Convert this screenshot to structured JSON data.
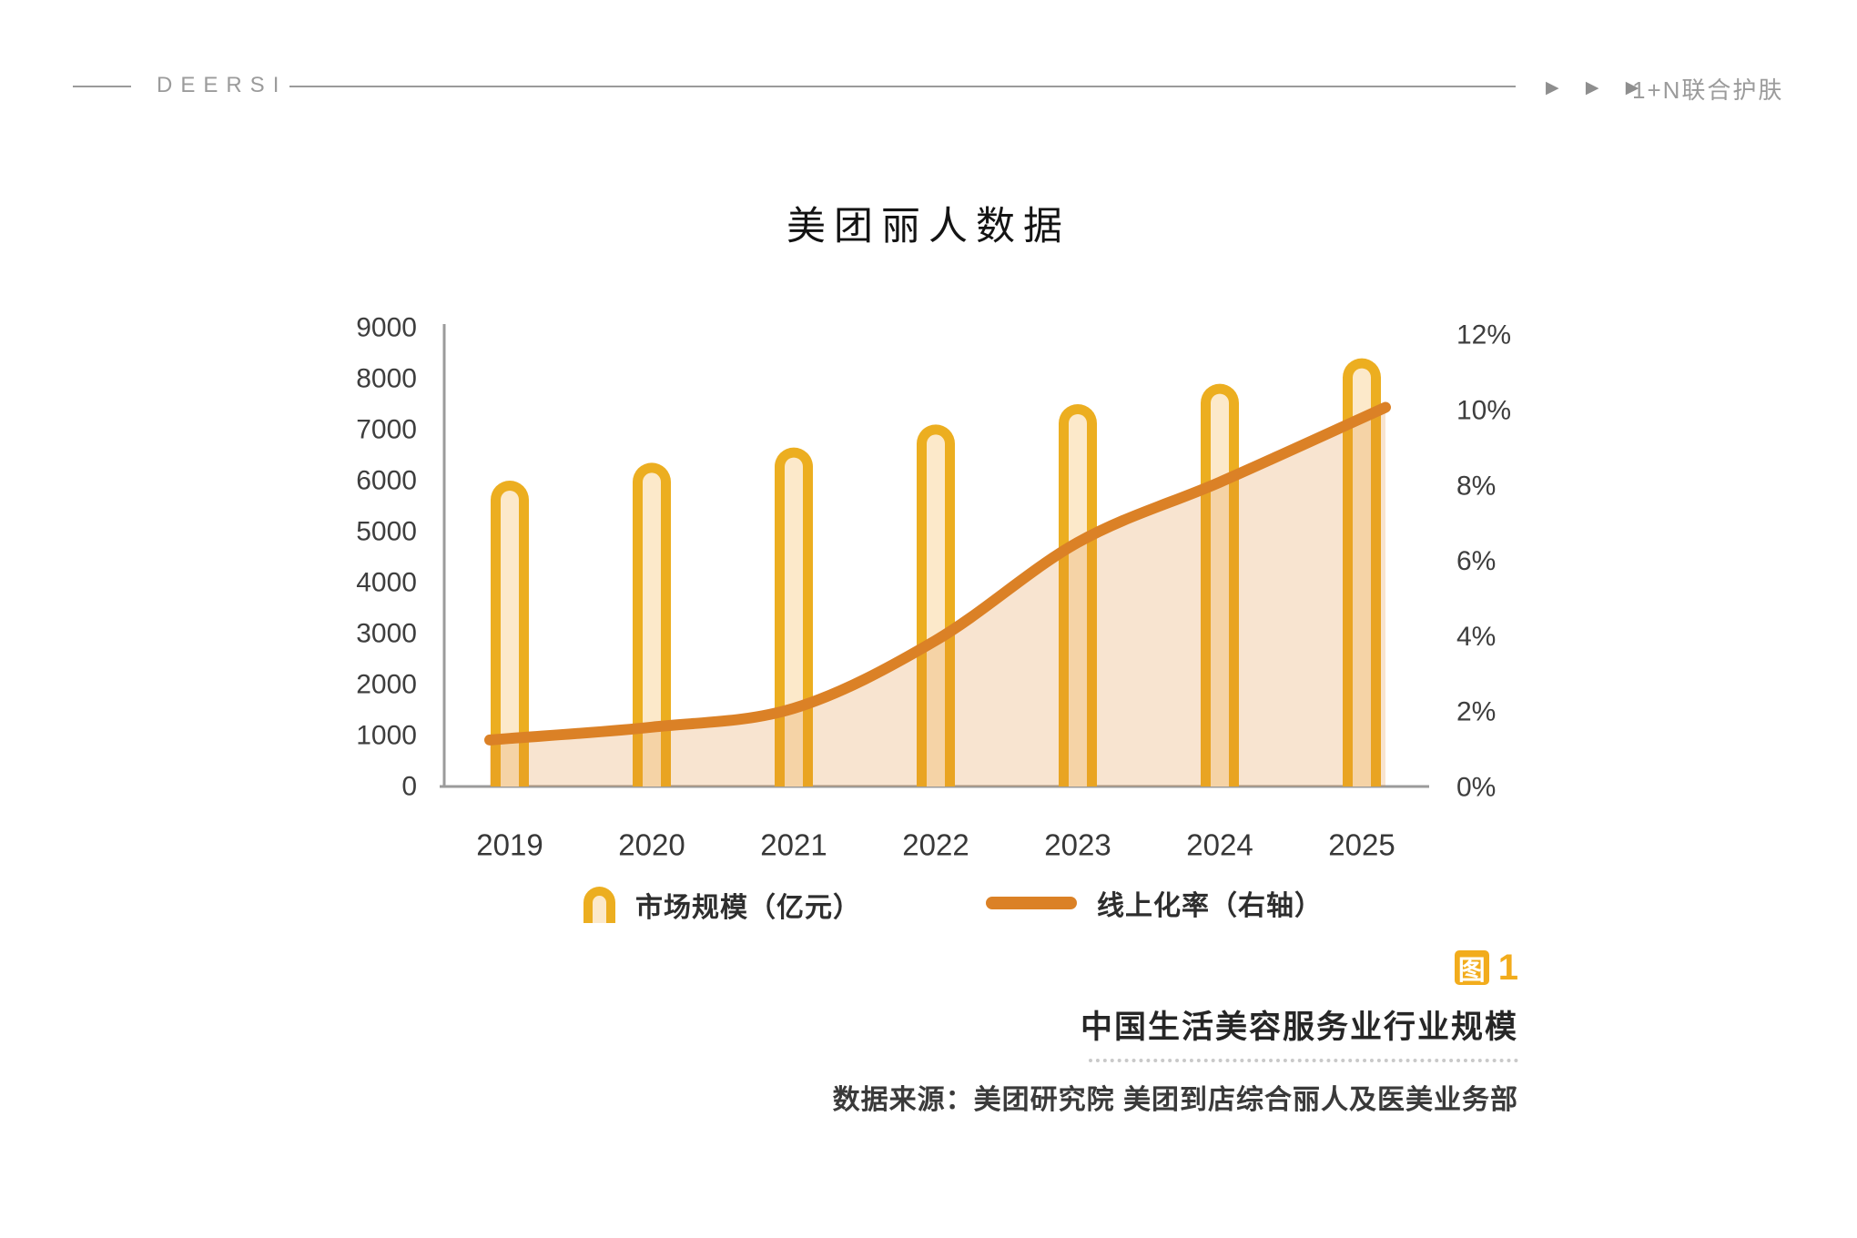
{
  "header": {
    "brand": "DEERSI",
    "arrows": "▶ ▶ ▶",
    "nav_text": "1+N联合护肤"
  },
  "title": "美团丽人数据",
  "chart_data": {
    "type": "combo-bar-line",
    "title": "美团丽人数据",
    "categories": [
      "2019",
      "2020",
      "2021",
      "2022",
      "2023",
      "2024",
      "2025"
    ],
    "series": [
      {
        "name": "市场规模（亿元）",
        "type": "bar",
        "axis": "left",
        "values": [
          6000,
          6350,
          6650,
          7100,
          7500,
          7900,
          8400
        ]
      },
      {
        "name": "线上化率（右轴）",
        "type": "line",
        "axis": "right",
        "values": [
          1.3,
          1.6,
          2.1,
          3.9,
          6.5,
          8.1,
          9.8
        ]
      }
    ],
    "left_axis": {
      "min": 0,
      "max": 9000,
      "ticks": [
        {
          "value": 0,
          "label": "0"
        },
        {
          "value": 1000,
          "label": "1000"
        },
        {
          "value": 2000,
          "label": "2000"
        },
        {
          "value": 3000,
          "label": "3000"
        },
        {
          "value": 4000,
          "label": "4000"
        },
        {
          "value": 5000,
          "label": "5000"
        },
        {
          "value": 6000,
          "label": "6000"
        },
        {
          "value": 7000,
          "label": "7000"
        },
        {
          "value": 8000,
          "label": "8000"
        },
        {
          "value": 9000,
          "label": "9000"
        }
      ]
    },
    "right_axis": {
      "min": 0,
      "max": 12,
      "ticks": [
        {
          "value": 0,
          "label": "0%"
        },
        {
          "value": 2,
          "label": "2%"
        },
        {
          "value": 4,
          "label": "4%"
        },
        {
          "value": 6,
          "label": "6%"
        },
        {
          "value": 8,
          "label": "8%"
        },
        {
          "value": 10,
          "label": "10%"
        },
        {
          "value": 12,
          "label": "12%"
        }
      ]
    },
    "grid": false,
    "legend_position": "bottom"
  },
  "legend": {
    "bar_label": "市场规模（亿元）",
    "line_label": "线上化率（右轴）"
  },
  "caption": {
    "figure_tag": "图",
    "figure_number": "1",
    "title": "中国生活美容服务业行业规模",
    "source": "数据来源：美团研究院  美团到店综合丽人及医美业务部"
  },
  "colors": {
    "bar_border": "#ecae20",
    "bar_fill": "#fce9ca",
    "line": "#db8126",
    "area_fill": "rgba(222,133,41,0.22)",
    "axis_line": "#9b9b9b",
    "tick_text": "#3e3e3e",
    "accent_orange": "#f2ac1c",
    "header_gray": "#9b9b9b"
  }
}
